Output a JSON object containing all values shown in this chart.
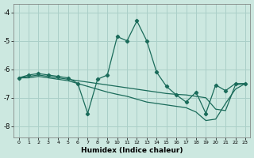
{
  "xlabel": "Humidex (Indice chaleur)",
  "bg_color": "#cce8e0",
  "grid_color": "#aacfc8",
  "line_color": "#1a6b5a",
  "xlim": [
    -0.5,
    23.5
  ],
  "ylim": [
    -8.4,
    -3.7
  ],
  "xticks": [
    0,
    1,
    2,
    3,
    4,
    5,
    6,
    7,
    8,
    9,
    10,
    11,
    12,
    13,
    14,
    15,
    16,
    17,
    18,
    19,
    20,
    21,
    22,
    23
  ],
  "yticks": [
    -8,
    -7,
    -6,
    -5,
    -4
  ],
  "line1_x": [
    0,
    1,
    2,
    3,
    4,
    5,
    6,
    7,
    8,
    9,
    10,
    11,
    12,
    13,
    14,
    15,
    16,
    17,
    18,
    19,
    20,
    21,
    22,
    23
  ],
  "line1_y": [
    -6.3,
    -6.2,
    -6.15,
    -6.2,
    -6.25,
    -6.3,
    -6.5,
    -7.55,
    -6.35,
    -6.2,
    -4.85,
    -5.0,
    -4.3,
    -5.0,
    -6.1,
    -6.6,
    -6.9,
    -7.15,
    -6.8,
    -7.55,
    -6.55,
    -6.75,
    -6.5,
    -6.5
  ],
  "line2_x": [
    0,
    1,
    2,
    3,
    4,
    5,
    6,
    7,
    8,
    9,
    10,
    11,
    12,
    13,
    14,
    15,
    16,
    17,
    18,
    19,
    20,
    21,
    22,
    23
  ],
  "line2_y": [
    -6.3,
    -6.25,
    -6.2,
    -6.25,
    -6.3,
    -6.35,
    -6.4,
    -6.45,
    -6.5,
    -6.55,
    -6.6,
    -6.65,
    -6.7,
    -6.75,
    -6.8,
    -6.85,
    -6.88,
    -6.9,
    -6.95,
    -7.0,
    -7.4,
    -7.45,
    -6.55,
    -6.5
  ],
  "line3_x": [
    0,
    1,
    2,
    3,
    4,
    5,
    6,
    7,
    8,
    9,
    10,
    11,
    12,
    13,
    14,
    15,
    16,
    17,
    18,
    19,
    20,
    21,
    22,
    23
  ],
  "line3_y": [
    -6.3,
    -6.3,
    -6.25,
    -6.3,
    -6.35,
    -6.4,
    -6.5,
    -6.6,
    -6.7,
    -6.8,
    -6.88,
    -6.95,
    -7.05,
    -7.15,
    -7.2,
    -7.25,
    -7.3,
    -7.35,
    -7.5,
    -7.8,
    -7.75,
    -7.2,
    -6.7,
    -6.5
  ]
}
